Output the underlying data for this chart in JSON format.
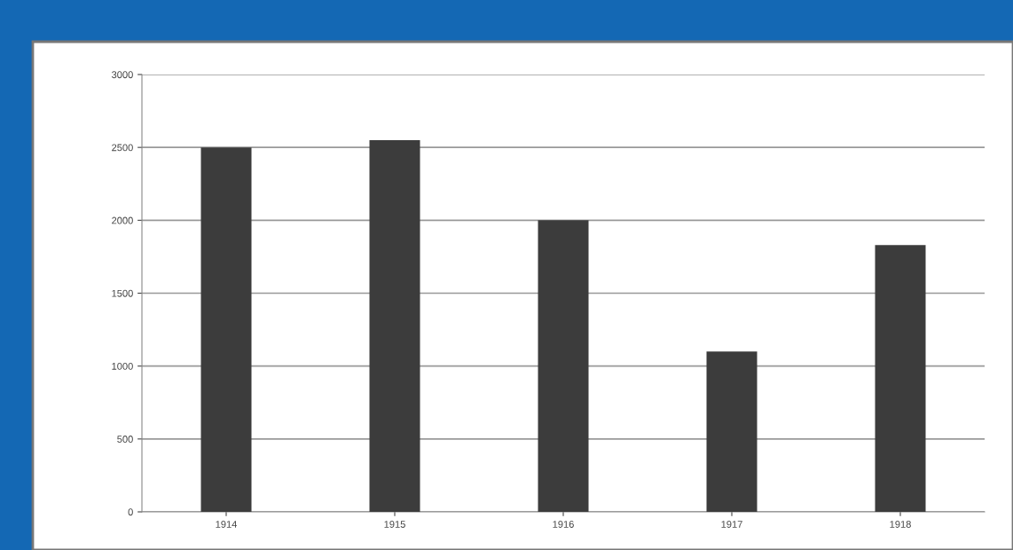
{
  "chart_data": {
    "type": "bar",
    "categories": [
      "1914",
      "1915",
      "1916",
      "1917",
      "1918"
    ],
    "values": [
      2500,
      2550,
      2000,
      1100,
      1830
    ],
    "color": "#3c3c3c",
    "ylim": [
      0,
      3000
    ],
    "yticks": [
      0,
      500,
      1000,
      1500,
      2000,
      2500,
      3000
    ],
    "grid": "y",
    "legend": false
  }
}
